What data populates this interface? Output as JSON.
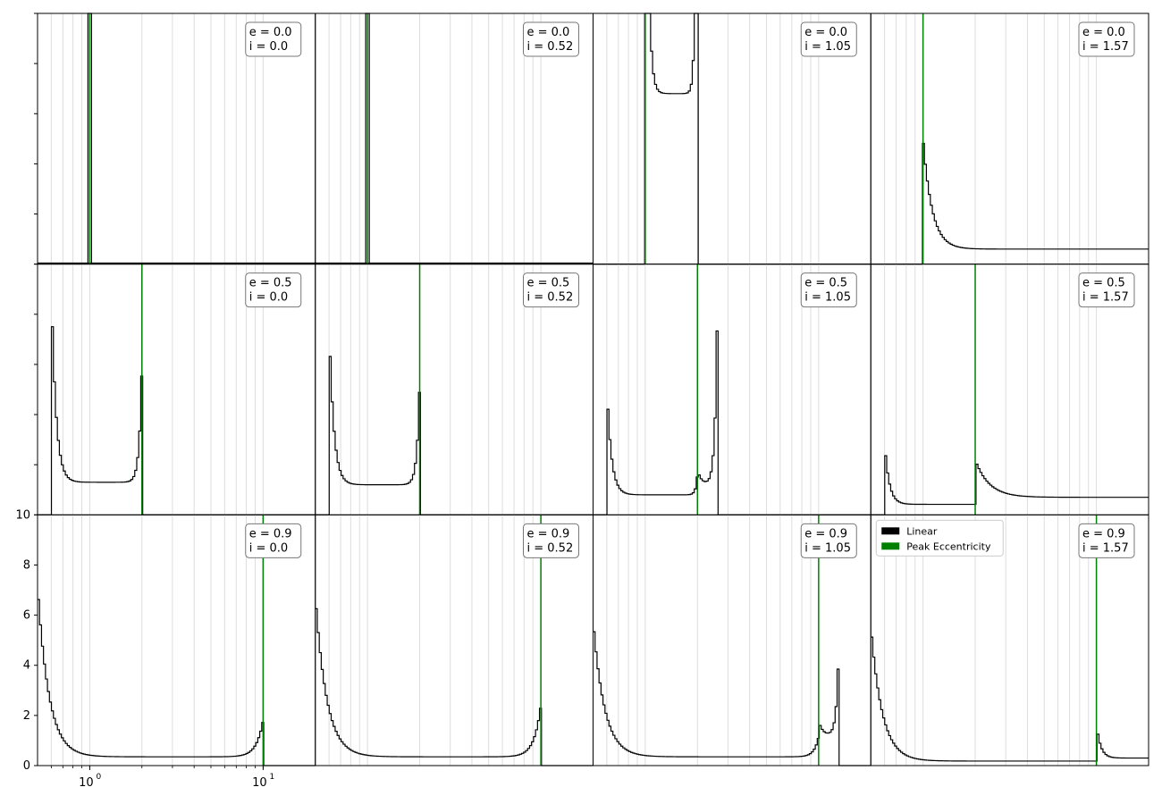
{
  "chart_data": {
    "type": "histogram-grid",
    "rows": 3,
    "cols": 4,
    "x_scale": "log",
    "xlim": [
      0.5,
      20
    ],
    "x_tick_labels": [
      {
        "value": 1,
        "base": "10",
        "exp": "0"
      },
      {
        "value": 10,
        "base": "10",
        "exp": "1"
      }
    ],
    "bottom_row_ylim": [
      0,
      10
    ],
    "bottom_row_y_ticks": [
      "0",
      "2",
      "4",
      "6",
      "8",
      "10"
    ],
    "grid": "vertical, log-minor",
    "colors": {
      "hist": "#000000",
      "peak": "#008000",
      "grid": "#dddddd"
    },
    "legend": {
      "placement": "top-left of bottom-right panel",
      "entries": [
        {
          "label": "Linear",
          "color": "#000000"
        },
        {
          "label": "Peak Eccentricity",
          "color": "#008000"
        }
      ]
    },
    "panels": [
      {
        "e_label": "e = 0.0",
        "i_label": "i = 0.0",
        "peak": 1.0,
        "dist": "spike",
        "center": 1.0
      },
      {
        "e_label": "e = 0.0",
        "i_label": "i = 0.52",
        "peak": 1.0,
        "dist": "spike",
        "center": 1.0
      },
      {
        "e_label": "e = 0.0",
        "i_label": "i = 1.05",
        "peak": 1.0,
        "dist": "hump",
        "lo": 1.0,
        "hi": 2.0,
        "edge": 26,
        "base": 6.8
      },
      {
        "e_label": "e = 0.0",
        "i_label": "i = 1.57",
        "peak": 1.0,
        "dist": "decay",
        "lo": 1.0,
        "hi": 20,
        "spike": 5.0,
        "floor": 0.6
      },
      {
        "e_label": "e = 0.5",
        "i_label": "i = 0.0",
        "peak": 2.0,
        "dist": "hump",
        "lo": 0.6,
        "hi": 2.0,
        "l_spike": 9.3,
        "r_spike": 5.9,
        "base": 1.3
      },
      {
        "e_label": "e = 0.5",
        "i_label": "i = 0.52",
        "peak": 2.0,
        "dist": "hump",
        "lo": 0.6,
        "hi": 2.0,
        "l_spike": 7.8,
        "r_spike": 5.2,
        "base": 1.2
      },
      {
        "e_label": "e = 0.5",
        "i_label": "i = 1.05",
        "peak": 2.0,
        "dist": "double",
        "lo": 0.6,
        "mid": 2.0,
        "hi": 2.6,
        "l_spike": 5.2,
        "r_spike": 7.7,
        "base": 0.8
      },
      {
        "e_label": "e = 0.5",
        "i_label": "i = 1.57",
        "peak": 2.0,
        "dist": "tail",
        "lo": 0.6,
        "mid": 2.0,
        "hi": 20,
        "l_spike": 3.2,
        "r_spike": 2.2,
        "base": 0.7
      },
      {
        "e_label": "e = 0.9",
        "i_label": "i = 0.0",
        "peak": 10.0,
        "dist": "hump",
        "lo": 0.5,
        "hi": 10.0,
        "l_spike": 7.2,
        "r_spike": 1.8,
        "base": 0.35
      },
      {
        "e_label": "e = 0.9",
        "i_label": "i = 0.52",
        "peak": 10.0,
        "dist": "hump",
        "lo": 0.5,
        "hi": 10.0,
        "l_spike": 6.8,
        "r_spike": 2.4,
        "base": 0.35
      },
      {
        "e_label": "e = 0.9",
        "i_label": "i = 1.05",
        "peak": 10.0,
        "dist": "double",
        "lo": 0.5,
        "mid": 10.0,
        "hi": 13.0,
        "l_spike": 5.8,
        "r_spike": 4.2,
        "base": 0.35
      },
      {
        "e_label": "e = 0.9",
        "i_label": "i = 1.57",
        "peak": 10.0,
        "dist": "tail",
        "lo": 0.5,
        "mid": 10.0,
        "hi": 20,
        "l_spike": 5.7,
        "r_spike": 1.7,
        "base": 0.3
      }
    ]
  }
}
